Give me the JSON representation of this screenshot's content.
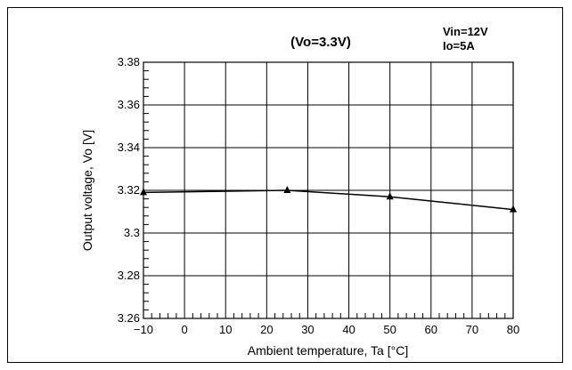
{
  "chart_data": {
    "type": "line",
    "title": "(Vo=3.3V)",
    "conditions": [
      "Vin=12V",
      "Io=5A"
    ],
    "xlabel": "Ambient temperature, Ta [°C]",
    "ylabel": "Output voltage, Vo [V]",
    "xlim": [
      -10,
      80
    ],
    "ylim": [
      3.26,
      3.38
    ],
    "xticks": [
      -10,
      0,
      10,
      20,
      30,
      40,
      50,
      60,
      70,
      80
    ],
    "yticks": [
      3.26,
      3.28,
      3.3,
      3.32,
      3.34,
      3.36,
      3.38
    ],
    "xtick_labels": [
      "−10",
      "0",
      "10",
      "20",
      "30",
      "40",
      "50",
      "60",
      "70",
      "80"
    ],
    "ytick_labels": [
      "3.26",
      "3.28",
      "3.3",
      "3.32",
      "3.34",
      "3.36",
      "3.38"
    ],
    "grid": true,
    "marker": "triangle",
    "series": [
      {
        "x": [
          -10,
          25,
          50,
          80
        ],
        "y": [
          3.319,
          3.32,
          3.317,
          3.311
        ]
      }
    ]
  }
}
